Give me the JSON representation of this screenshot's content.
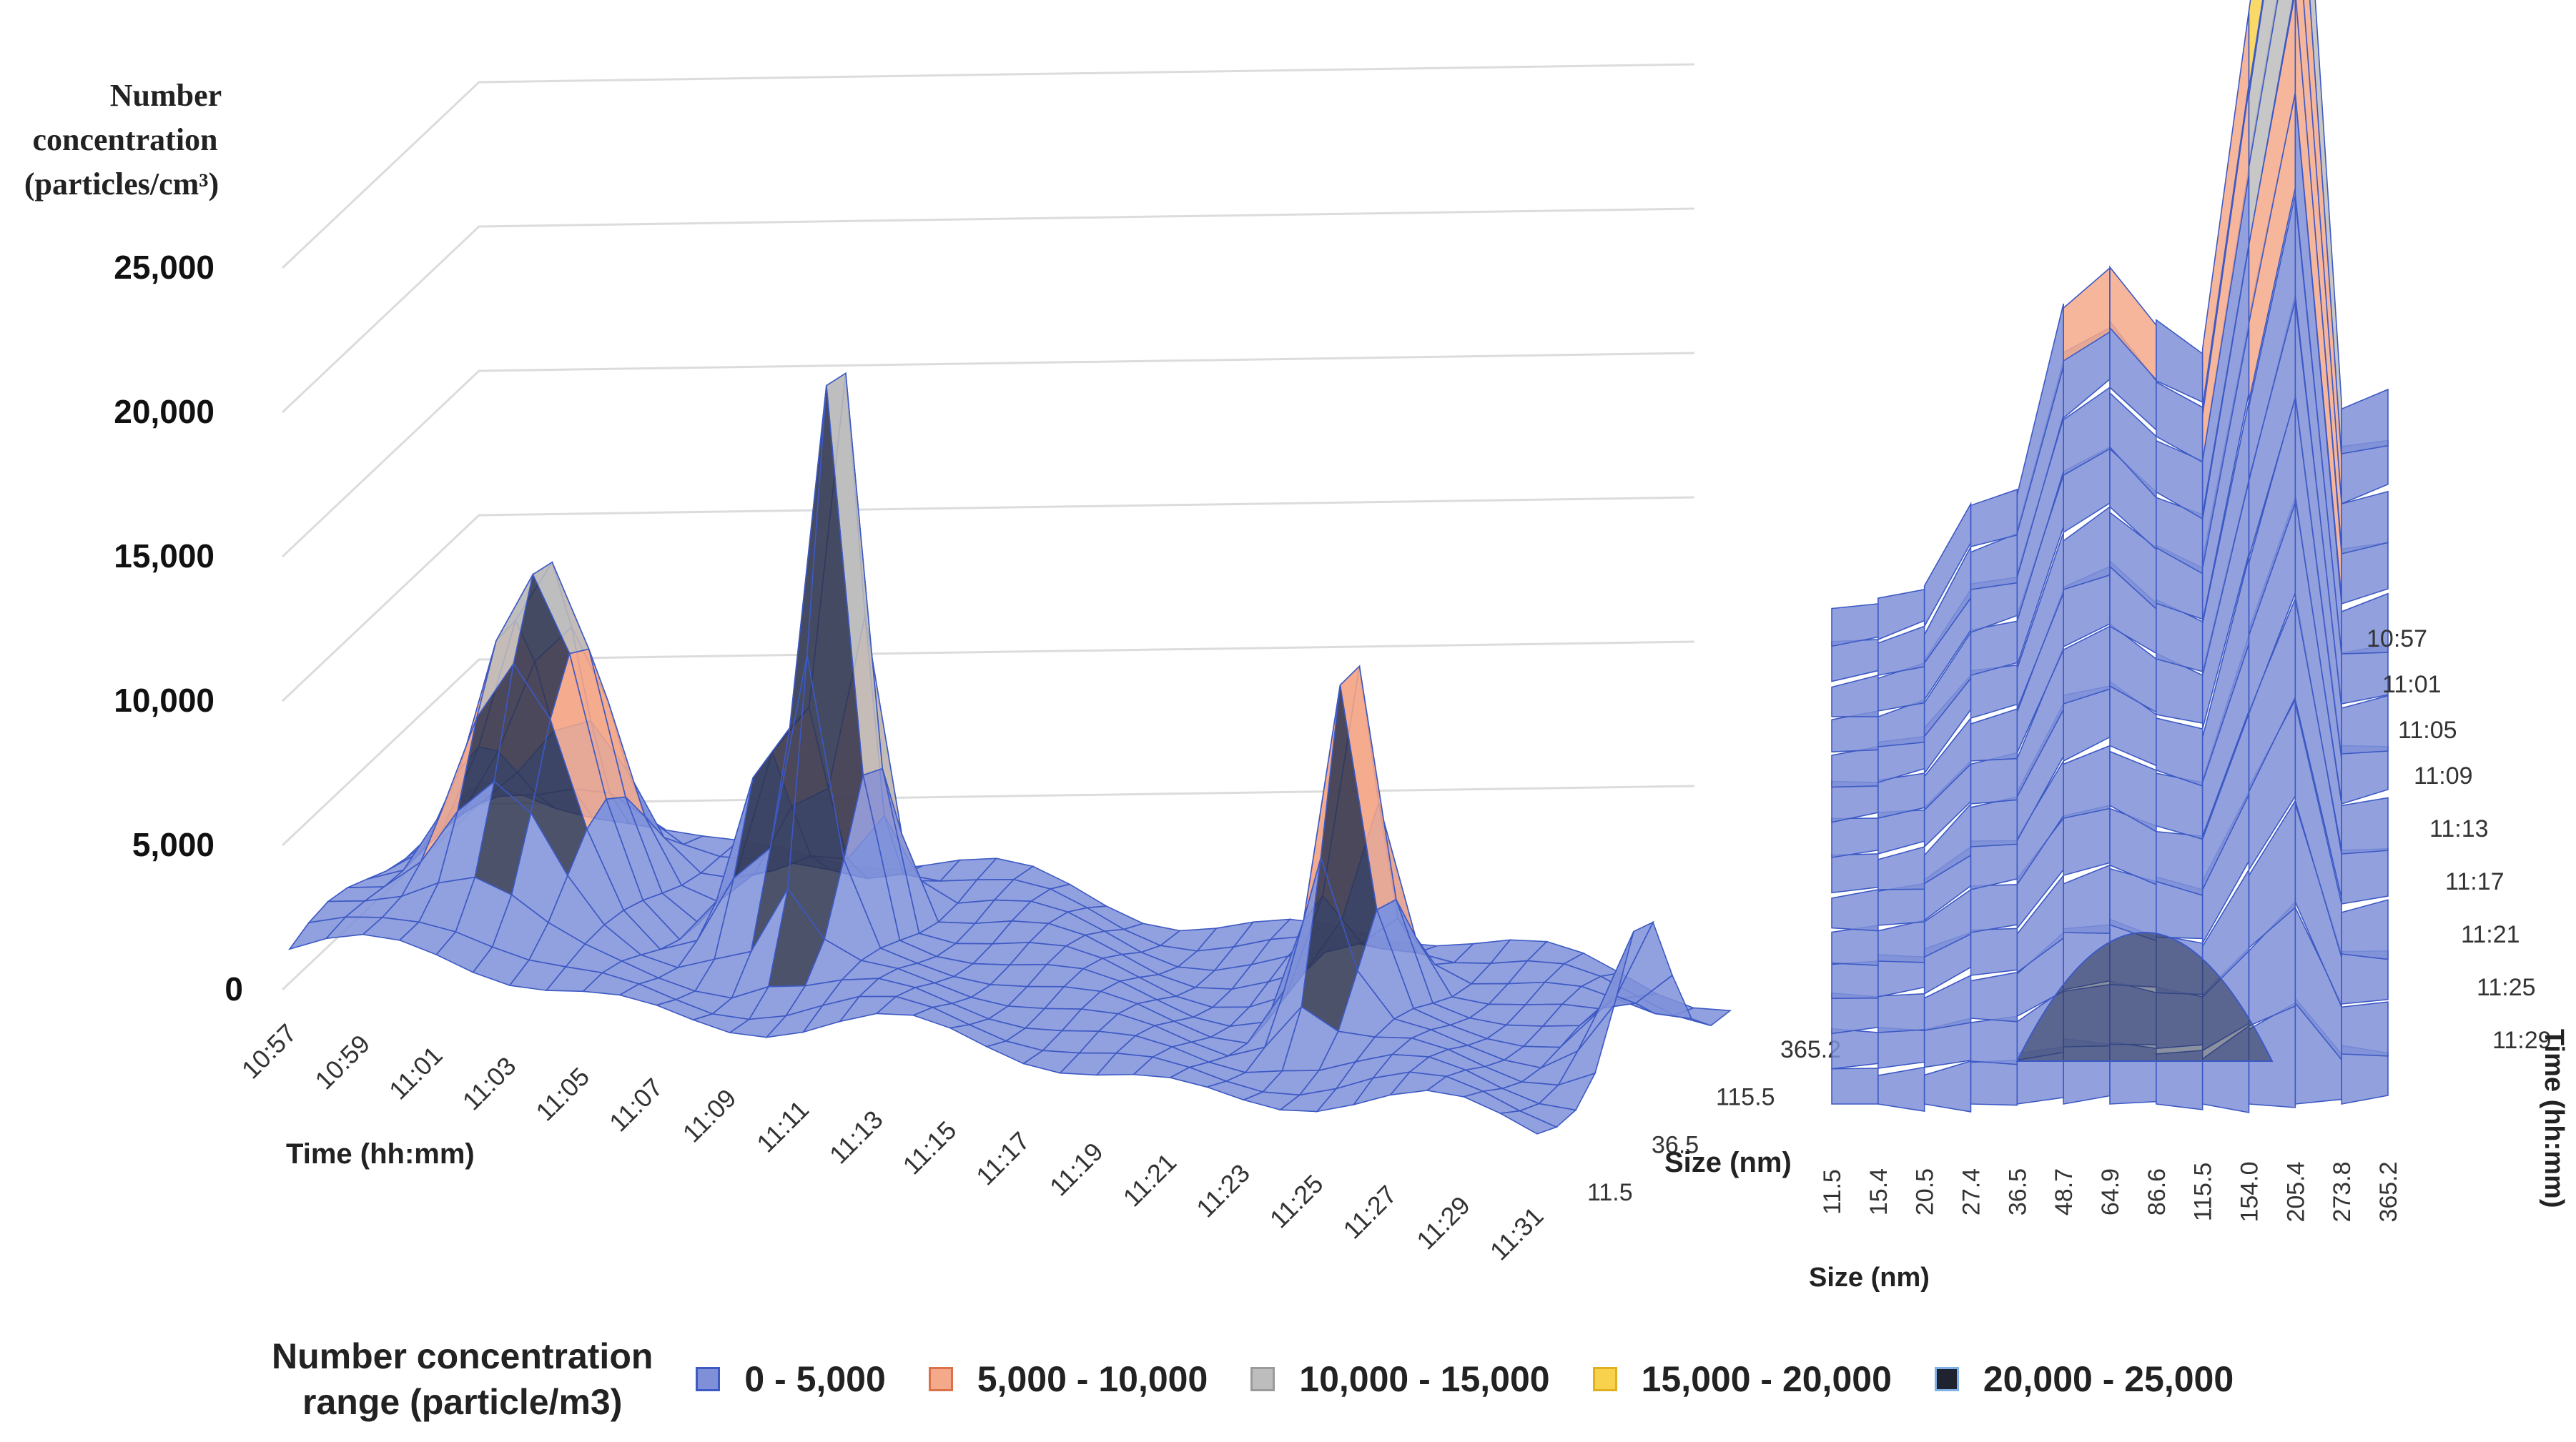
{
  "chart_data": [
    {
      "type": "surface",
      "view": "front",
      "title": "Number concentration (particles/cm³)",
      "y_title_lines": [
        "Number",
        "concentration",
        "(particles/cm³)"
      ],
      "ylabel": "Number concentration (particles/cm³)",
      "xlabel": "Time (hh:mm)",
      "zlabel": "Size (nm)",
      "ylim": [
        0,
        25000
      ],
      "y_ticks": [
        "0",
        "5,000",
        "10,000",
        "15,000",
        "20,000",
        "25,000"
      ],
      "x_ticks": [
        "10:57",
        "10:59",
        "11:01",
        "11:03",
        "11:05",
        "11:07",
        "11:09",
        "11:11",
        "11:13",
        "11:15",
        "11:17",
        "11:19",
        "11:21",
        "11:23",
        "11:25",
        "11:27",
        "11:29",
        "11:31"
      ],
      "z_ticks": [
        "11.5",
        "36.5",
        "115.5",
        "365.2"
      ],
      "peaks": [
        {
          "time": "11:01",
          "value": 12000
        },
        {
          "time": "11:07",
          "value": 6500
        },
        {
          "time": "11:09",
          "value": 22000
        },
        {
          "time": "11:23",
          "value": 13000
        },
        {
          "time": "11:31",
          "value": 5000
        }
      ]
    },
    {
      "type": "surface",
      "view": "side",
      "xlabel": "Size (nm)",
      "ylabel": "Time (hh:mm)",
      "x_ticks": [
        "11.5",
        "15.4",
        "20.5",
        "27.4",
        "36.5",
        "48.7",
        "64.9",
        "86.6",
        "115.5",
        "154.0",
        "205.4",
        "273.8",
        "365.2"
      ],
      "y_ticks": [
        "10:57",
        "11:01",
        "11:05",
        "11:09",
        "11:13",
        "11:17",
        "11:21",
        "11:25",
        "11:29"
      ]
    }
  ],
  "legend": {
    "title_lines": [
      "Number concentration",
      "range (particle/m3)"
    ],
    "items": [
      {
        "label": "0 - 5,000",
        "color": "#7f90d8",
        "border": "#3d59c4"
      },
      {
        "label": "5,000 - 10,000",
        "color": "#f4a98a",
        "border": "#d9724a"
      },
      {
        "label": "10,000 - 15,000",
        "color": "#bdbdbd",
        "border": "#9a9a9a"
      },
      {
        "label": "15,000 - 20,000",
        "color": "#f8d24d",
        "border": "#e0b020"
      },
      {
        "label": "20,000 - 25,000",
        "color": "#1f2330",
        "border": "#7fb0e8"
      }
    ]
  }
}
